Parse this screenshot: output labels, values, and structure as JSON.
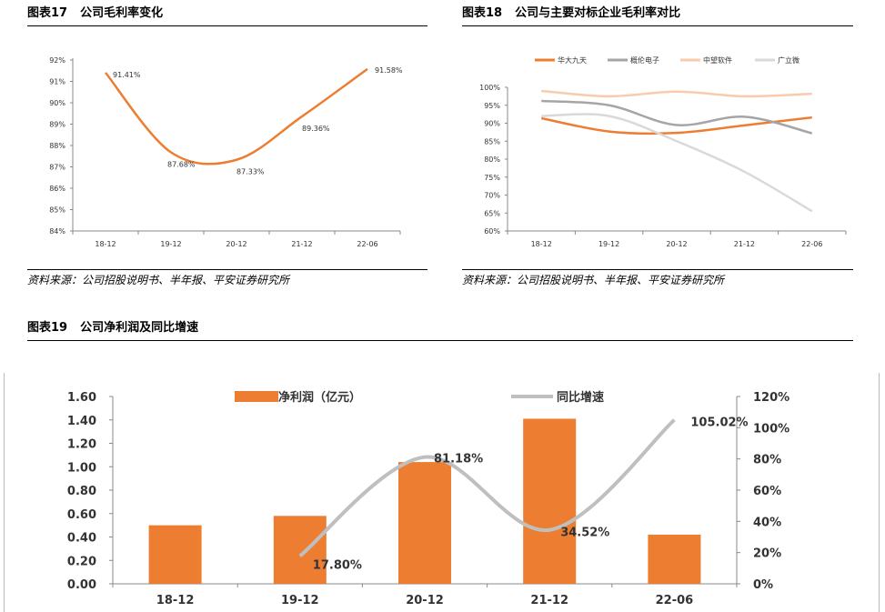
{
  "fig17": {
    "figure_number": "图表17",
    "title": "公司毛利率变化",
    "source": "资料来源：公司招股说明书、半年报、平安证券研究所"
  },
  "fig18": {
    "figure_number": "图表18",
    "title": "公司与主要对标企业毛利率对比",
    "source": "资料来源：公司招股说明书、半年报、平安证券研究所"
  },
  "fig19": {
    "figure_number": "图表19",
    "title": "公司净利润及同比增速"
  },
  "chart_data": [
    {
      "type": "line",
      "title": "",
      "categories": [
        "18-12",
        "19-12",
        "20-12",
        "21-12",
        "22-06"
      ],
      "y_ticks": [
        "84%",
        "85%",
        "86%",
        "87%",
        "88%",
        "89%",
        "90%",
        "91%",
        "92%"
      ],
      "ylim": [
        84,
        92
      ],
      "series": [
        {
          "values": [
            91.41,
            87.68,
            87.33,
            89.36,
            91.58
          ],
          "labels": [
            "91.41%",
            "87.68%",
            "87.33%",
            "89.36%",
            "91.58%"
          ],
          "color": "#ED7D31"
        }
      ],
      "grid": false
    },
    {
      "type": "line",
      "title": "",
      "categories": [
        "18-12",
        "19-12",
        "20-12",
        "21-12",
        "22-06"
      ],
      "y_ticks": [
        "60%",
        "65%",
        "70%",
        "75%",
        "80%",
        "85%",
        "90%",
        "95%",
        "100%"
      ],
      "ylim": [
        60,
        100
      ],
      "legend_position": "top",
      "series": [
        {
          "name": "华大九天",
          "values": [
            91.4,
            87.7,
            87.3,
            89.4,
            91.6
          ],
          "color": "#ED7D31"
        },
        {
          "name": "概伦电子",
          "values": [
            96.2,
            95.0,
            89.5,
            91.8,
            87.2
          ],
          "color": "#A5A5A5"
        },
        {
          "name": "中望软件",
          "values": [
            99.0,
            97.5,
            98.8,
            97.5,
            98.2
          ],
          "color": "#F8CBAD"
        },
        {
          "name": "广立微",
          "values": [
            92.0,
            92.0,
            85.0,
            76.5,
            65.5
          ],
          "color": "#D9D9D9"
        }
      ],
      "grid": false
    },
    {
      "type": "bar",
      "title": "",
      "categories": [
        "18-12",
        "19-12",
        "20-12",
        "21-12",
        "22-06"
      ],
      "y_ticks": [
        "0.00",
        "0.20",
        "0.40",
        "0.60",
        "0.80",
        "1.00",
        "1.20",
        "1.40",
        "1.60"
      ],
      "ylim": [
        0,
        1.6
      ],
      "y2_ticks": [
        "0%",
        "20%",
        "40%",
        "60%",
        "80%",
        "100%",
        "120%"
      ],
      "y2lim": [
        0,
        120
      ],
      "legend_position": "top",
      "series": [
        {
          "name": "净利润（亿元）",
          "type": "bar",
          "axis": "left",
          "values": [
            0.5,
            0.58,
            1.04,
            1.41,
            0.42
          ],
          "color": "#ED7D31"
        },
        {
          "name": "同比增速",
          "type": "line",
          "axis": "right",
          "values": [
            null,
            17.8,
            81.18,
            34.52,
            105.02
          ],
          "labels": [
            "",
            "17.80%",
            "81.18%",
            "34.52%",
            "105.02%"
          ],
          "color": "#BFBFBF"
        }
      ],
      "grid": false
    }
  ]
}
